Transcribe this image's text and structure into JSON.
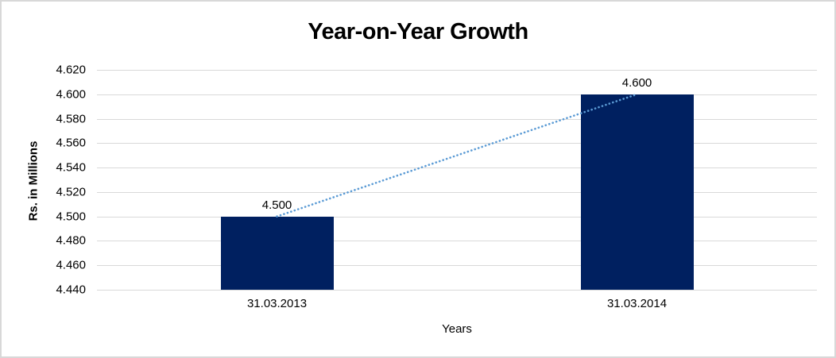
{
  "chart": {
    "background": "#FFFFFF",
    "border_color": "#D8D8D8",
    "text_color": "#000000"
  },
  "chart_data": {
    "type": "bar",
    "title": "Year-on-Year Growth",
    "xlabel": "Years",
    "ylabel": "Rs. in Millions",
    "categories": [
      "31.03.2013",
      "31.03.2014"
    ],
    "values": [
      4.5,
      4.6
    ],
    "data_labels": [
      "4.500",
      "4.600"
    ],
    "ylim": [
      4.44,
      4.62
    ],
    "yticks": [
      4.62,
      4.6,
      4.58,
      4.56,
      4.54,
      4.52,
      4.5,
      4.48,
      4.46,
      4.44
    ],
    "ytick_labels": [
      "4.620",
      "4.600",
      "4.580",
      "4.560",
      "4.540",
      "4.520",
      "4.500",
      "4.480",
      "4.460",
      "4.440"
    ],
    "grid": true,
    "legend": "none",
    "bar_color": "#002060",
    "gridline_color": "#D9D9D9",
    "trendline": {
      "type": "linear",
      "style": "dotted",
      "color": "#5B9BD5"
    }
  }
}
